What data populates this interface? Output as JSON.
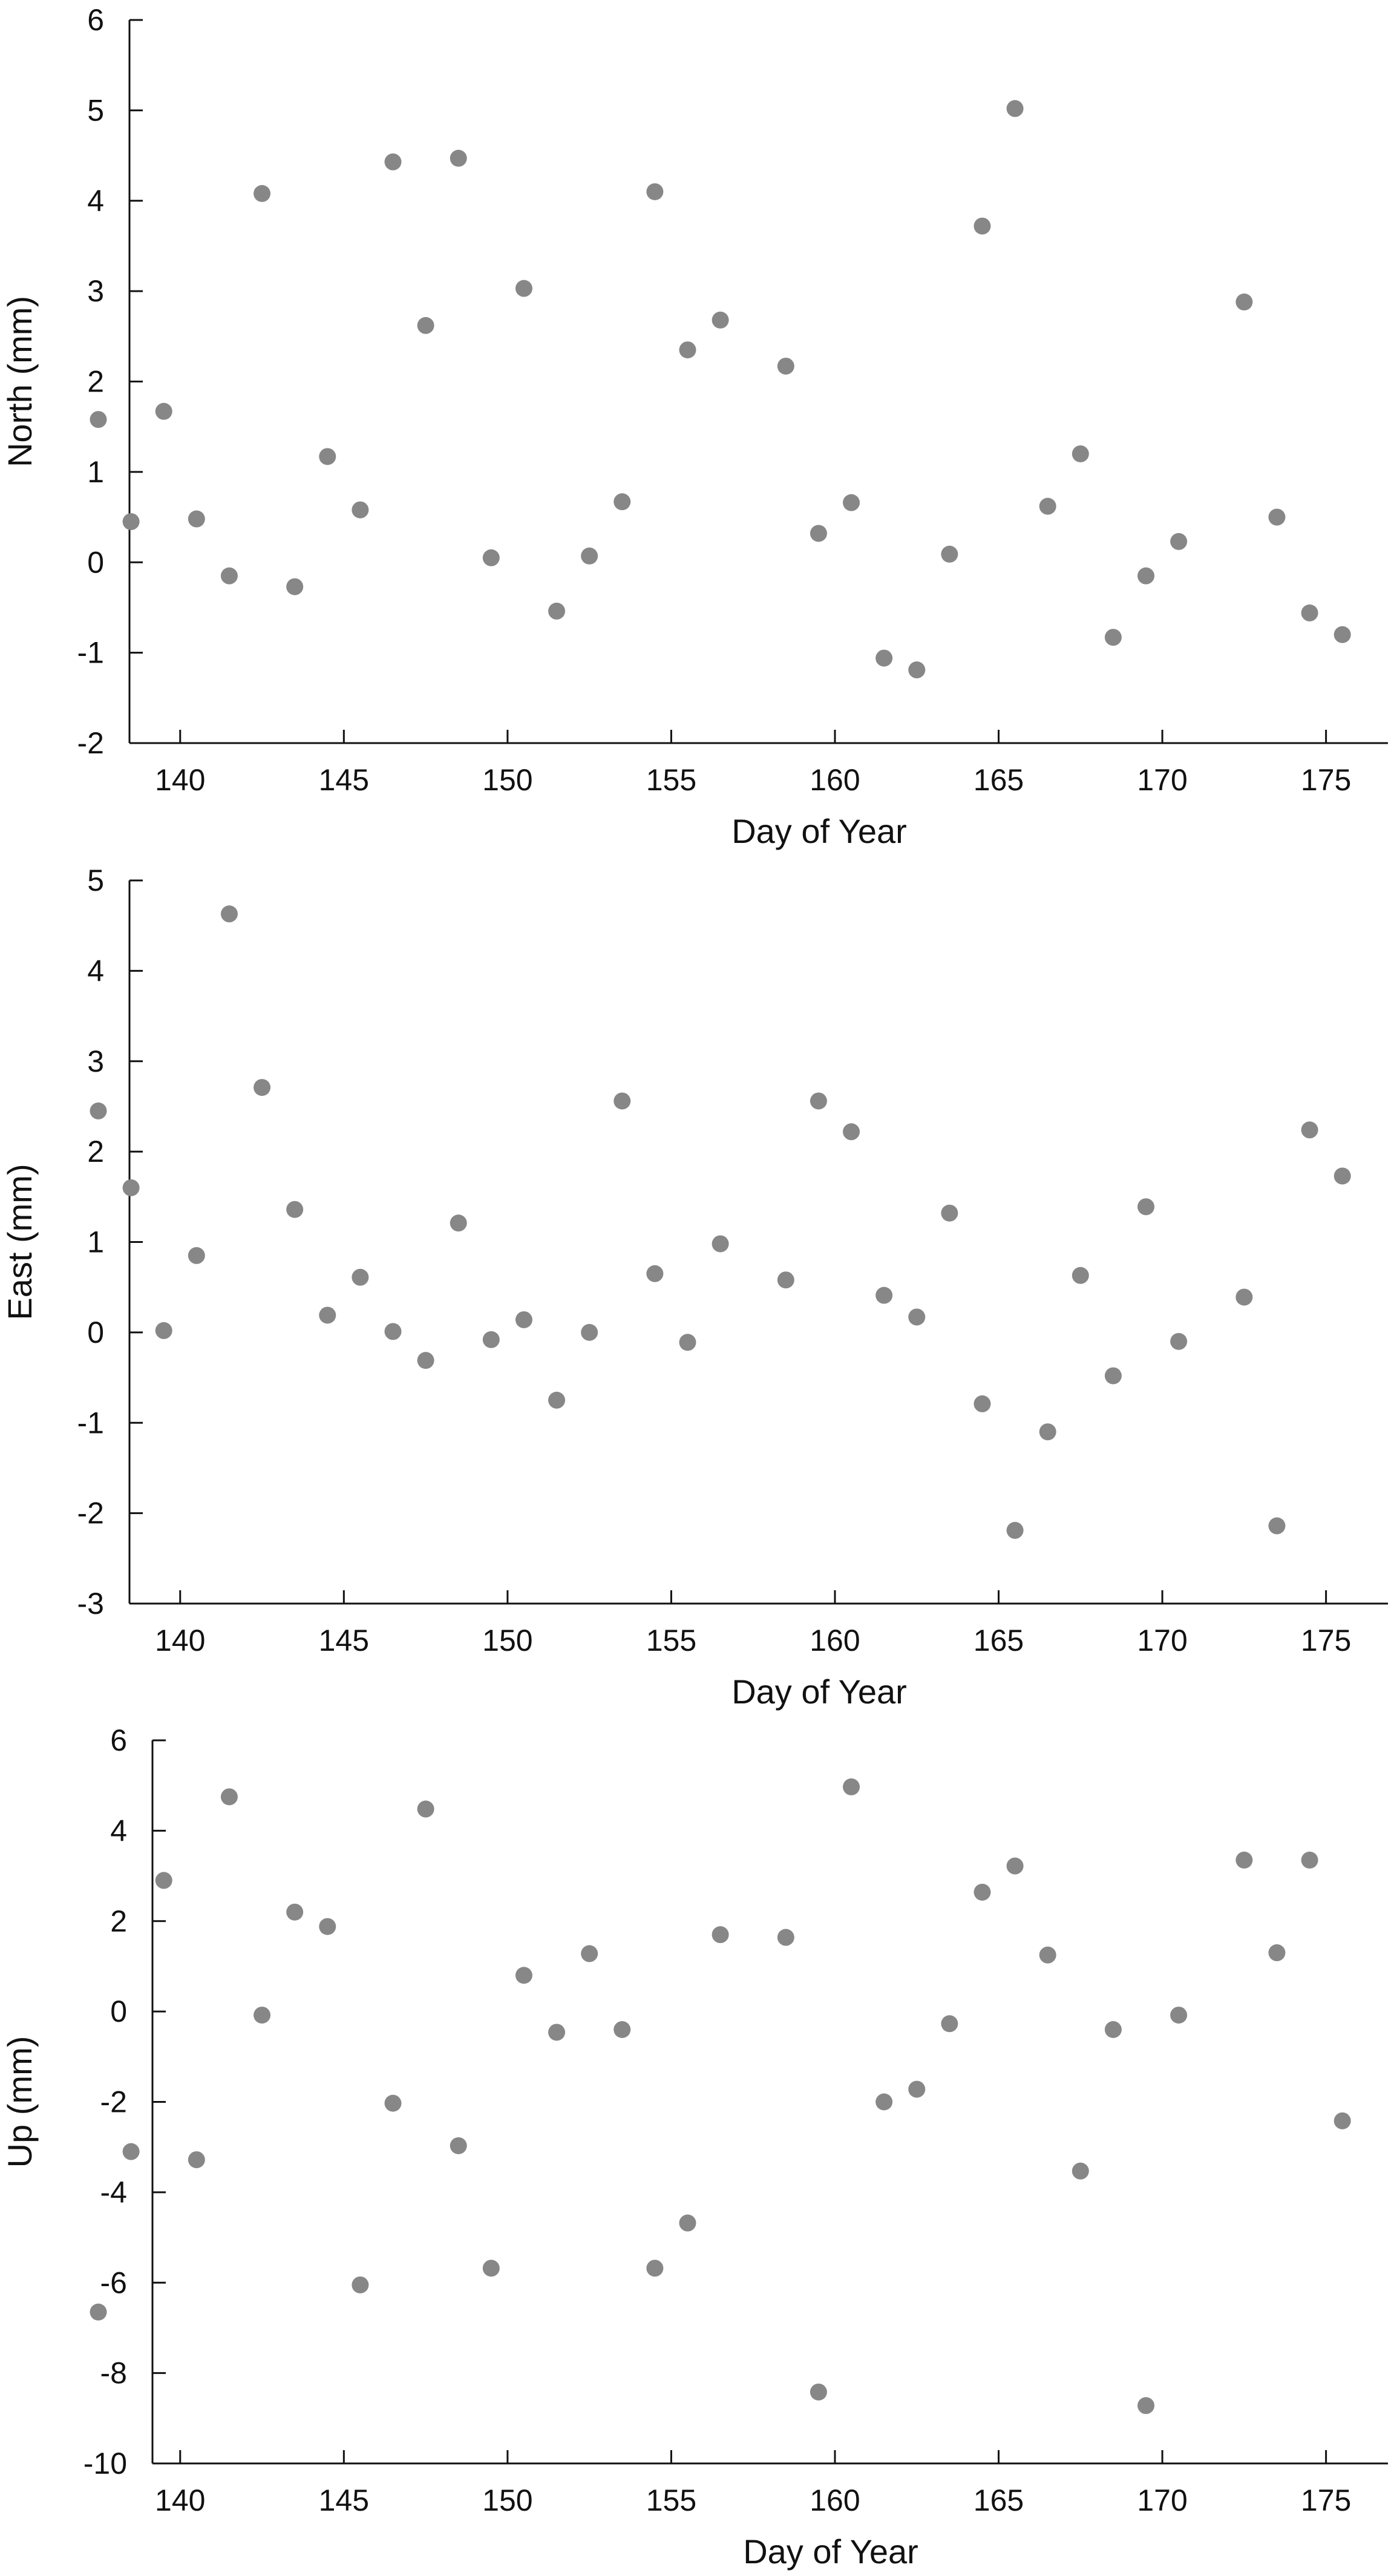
{
  "chart_data": [
    {
      "type": "scatter",
      "xlabel": "Day of Year",
      "ylabel": "North (mm)",
      "xlim": [
        137,
        177
      ],
      "ylim": [
        -2,
        6
      ],
      "xticks": [
        140,
        145,
        150,
        155,
        160,
        165,
        170,
        175
      ],
      "yticks": [
        -2,
        -1,
        0,
        1,
        2,
        3,
        4,
        5,
        6
      ],
      "grid": false,
      "marker_color": "#878787",
      "x": [
        137.5,
        138.5,
        139.5,
        140.5,
        141.5,
        142.5,
        143.5,
        144.5,
        145.5,
        146.5,
        147.5,
        148.5,
        149.5,
        150.5,
        151.5,
        152.5,
        153.5,
        154.5,
        155.5,
        156.5,
        158.5,
        159.5,
        160.5,
        161.5,
        162.5,
        163.5,
        164.5,
        165.5,
        166.5,
        167.5,
        168.5,
        169.5,
        170.5,
        172.5,
        173.5,
        174.5,
        175.5
      ],
      "y": [
        1.58,
        0.45,
        1.67,
        0.48,
        -0.15,
        4.08,
        -0.27,
        1.17,
        0.58,
        4.43,
        2.62,
        4.47,
        0.05,
        3.03,
        -0.54,
        0.07,
        0.67,
        4.1,
        2.35,
        2.68,
        2.17,
        0.32,
        0.66,
        -1.06,
        -1.19,
        0.09,
        3.72,
        5.02,
        0.62,
        1.2,
        -0.83,
        -0.15,
        0.23,
        2.88,
        0.5,
        -0.56,
        -0.8
      ]
    },
    {
      "type": "scatter",
      "xlabel": "Day of Year",
      "ylabel": "East (mm)",
      "xlim": [
        137,
        177
      ],
      "ylim": [
        -3,
        5
      ],
      "xticks": [
        140,
        145,
        150,
        155,
        160,
        165,
        170,
        175
      ],
      "yticks": [
        -3,
        -2,
        -1,
        0,
        1,
        2,
        3,
        4,
        5
      ],
      "grid": false,
      "marker_color": "#878787",
      "x": [
        137.5,
        138.5,
        139.5,
        140.5,
        141.5,
        142.5,
        143.5,
        144.5,
        145.5,
        146.5,
        147.5,
        148.5,
        149.5,
        150.5,
        151.5,
        152.5,
        153.5,
        154.5,
        155.5,
        156.5,
        158.5,
        159.5,
        160.5,
        161.5,
        162.5,
        163.5,
        164.5,
        165.5,
        166.5,
        167.5,
        168.5,
        169.5,
        170.5,
        172.5,
        173.5,
        174.5,
        175.5
      ],
      "y": [
        2.45,
        1.6,
        0.02,
        0.85,
        4.63,
        2.71,
        1.36,
        0.19,
        0.61,
        0.01,
        -0.31,
        1.21,
        -0.08,
        0.14,
        -0.75,
        0.0,
        2.56,
        0.65,
        -0.11,
        0.98,
        0.58,
        2.56,
        2.22,
        0.41,
        0.17,
        1.32,
        -0.79,
        -2.19,
        -1.1,
        0.63,
        -0.48,
        1.39,
        -0.1,
        0.39,
        -2.14,
        2.24,
        1.73
      ]
    },
    {
      "type": "scatter",
      "xlabel": "Day of Year",
      "ylabel": "Up (mm)",
      "xlim": [
        137,
        177
      ],
      "ylim": [
        -10,
        6
      ],
      "xticks": [
        140,
        145,
        150,
        155,
        160,
        165,
        170,
        175
      ],
      "yticks": [
        -10,
        -8,
        -6,
        -4,
        -2,
        0,
        2,
        4,
        6
      ],
      "grid": false,
      "marker_color": "#878787",
      "x": [
        137.5,
        138.5,
        139.5,
        140.5,
        141.5,
        142.5,
        143.5,
        144.5,
        145.5,
        146.5,
        147.5,
        148.5,
        149.5,
        150.5,
        151.5,
        152.5,
        153.5,
        154.5,
        155.5,
        156.5,
        158.5,
        159.5,
        160.5,
        161.5,
        162.5,
        163.5,
        164.5,
        165.5,
        166.5,
        167.5,
        168.5,
        169.5,
        170.5,
        172.5,
        173.5,
        174.5,
        175.5
      ],
      "y": [
        -6.65,
        -3.1,
        2.9,
        -3.28,
        4.75,
        -0.08,
        2.2,
        1.88,
        -6.05,
        -2.03,
        4.48,
        -2.97,
        -5.68,
        0.8,
        -0.46,
        1.28,
        -0.4,
        -5.68,
        -4.68,
        1.7,
        1.64,
        -8.42,
        4.97,
        -2.0,
        -1.72,
        -0.27,
        2.64,
        3.22,
        1.25,
        -3.53,
        -0.4,
        -8.72,
        -0.08,
        3.35,
        1.3,
        3.35,
        -2.42
      ]
    }
  ]
}
